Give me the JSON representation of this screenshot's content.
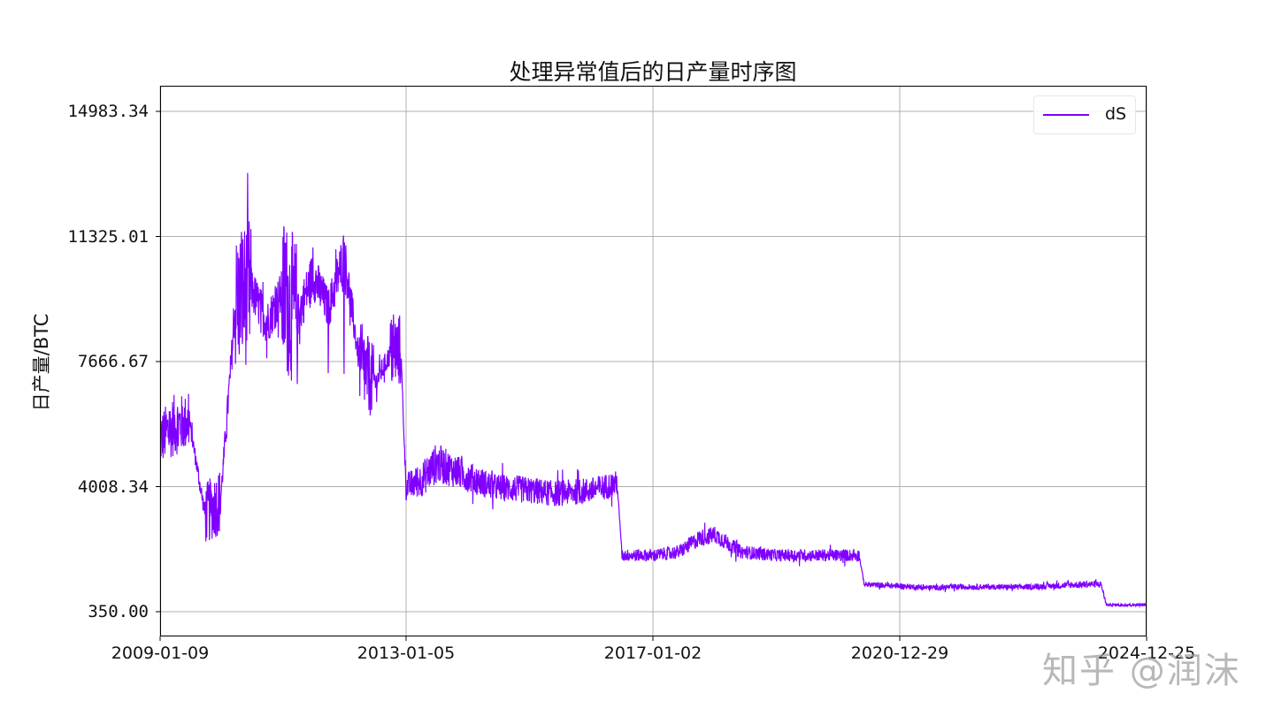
{
  "chart_data": {
    "type": "line",
    "title": "处理异常值后的日产量时序图",
    "xlabel": "",
    "ylabel": "日产量/BTC",
    "x_tick_labels": [
      "2009-01-09",
      "2013-01-05",
      "2017-01-02",
      "2020-12-29",
      "2024-12-25"
    ],
    "y_tick_labels": [
      "350.00",
      "4008.34",
      "7666.67",
      "11325.01",
      "14983.34"
    ],
    "y_ticks": [
      350.0,
      4008.34,
      7666.67,
      11325.01,
      14983.34
    ],
    "xlim": [
      "2009-01-09",
      "2024-12-25"
    ],
    "ylim": [
      -300,
      16100
    ],
    "grid": true,
    "legend_position": "upper right",
    "series": [
      {
        "name": "dS",
        "color": "#7f00ff",
        "x": [
          "2009-01",
          "2009-04",
          "2009-07",
          "2009-10",
          "2010-01",
          "2010-04",
          "2010-07",
          "2010-10",
          "2011-01",
          "2011-04",
          "2011-07",
          "2011-10",
          "2012-01",
          "2012-04",
          "2012-07",
          "2012-10",
          "2012-12",
          "2013-01",
          "2013-04",
          "2013-07",
          "2013-10",
          "2014-01",
          "2014-06",
          "2015-01",
          "2015-06",
          "2016-01",
          "2016-06",
          "2016-07",
          "2017-01",
          "2017-06",
          "2017-10",
          "2018-01",
          "2018-06",
          "2019-01",
          "2019-06",
          "2020-01",
          "2020-05",
          "2020-06",
          "2021-01",
          "2021-06",
          "2022-01",
          "2023-01",
          "2024-01",
          "2024-04",
          "2024-05",
          "2024-12"
        ],
        "values": [
          5400,
          5800,
          5900,
          3200,
          3600,
          9400,
          9800,
          8800,
          9700,
          9000,
          10200,
          9200,
          10800,
          7600,
          7000,
          7900,
          8000,
          4000,
          4200,
          4700,
          4500,
          4300,
          4000,
          3900,
          3800,
          3900,
          4100,
          2000,
          2000,
          2100,
          2500,
          2600,
          2100,
          2000,
          2000,
          2000,
          2000,
          1150,
          1100,
          1050,
          1080,
          1070,
          1150,
          1150,
          550,
          550
        ],
        "noise": [
          800,
          900,
          800,
          900,
          1000,
          2000,
          2200,
          2100,
          2300,
          2200,
          2400,
          2000,
          2600,
          1200,
          1100,
          1100,
          1100,
          400,
          500,
          600,
          500,
          450,
          400,
          400,
          380,
          380,
          380,
          180,
          180,
          200,
          250,
          260,
          200,
          180,
          180,
          180,
          180,
          80,
          80,
          80,
          80,
          80,
          100,
          100,
          40,
          40
        ]
      }
    ]
  },
  "legend": {
    "label": "dS",
    "color": "#7f00ff"
  },
  "watermark": "知乎 @润沫"
}
